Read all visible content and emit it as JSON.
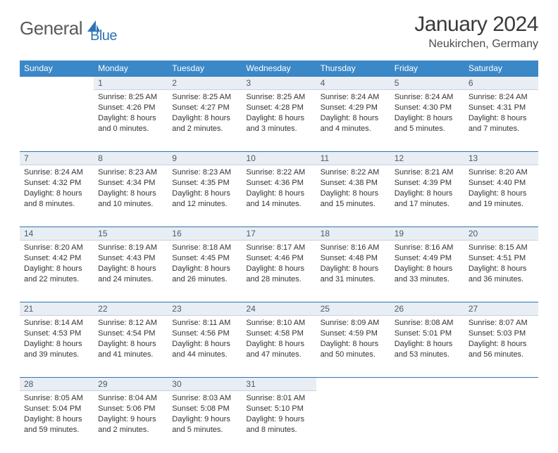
{
  "logo": {
    "text1": "General",
    "text2": "Blue"
  },
  "title": "January 2024",
  "location": "Neukirchen, Germany",
  "colors": {
    "headerBg": "#3b88c8",
    "headerText": "#ffffff",
    "dayBg": "#e8eef3",
    "dayBorderTop": "#2f73b5",
    "logoAccent": "#2f73b5",
    "text": "#333333"
  },
  "fonts": {
    "title_size": 30,
    "location_size": 16,
    "header_size": 12,
    "daynum_size": 12,
    "body_size": 11
  },
  "dayHeaders": [
    "Sunday",
    "Monday",
    "Tuesday",
    "Wednesday",
    "Thursday",
    "Friday",
    "Saturday"
  ],
  "weeks": [
    {
      "nums": [
        "",
        "1",
        "2",
        "3",
        "4",
        "5",
        "6"
      ],
      "cells": [
        null,
        {
          "sr": "Sunrise: 8:25 AM",
          "ss": "Sunset: 4:26 PM",
          "dl1": "Daylight: 8 hours",
          "dl2": "and 0 minutes."
        },
        {
          "sr": "Sunrise: 8:25 AM",
          "ss": "Sunset: 4:27 PM",
          "dl1": "Daylight: 8 hours",
          "dl2": "and 2 minutes."
        },
        {
          "sr": "Sunrise: 8:25 AM",
          "ss": "Sunset: 4:28 PM",
          "dl1": "Daylight: 8 hours",
          "dl2": "and 3 minutes."
        },
        {
          "sr": "Sunrise: 8:24 AM",
          "ss": "Sunset: 4:29 PM",
          "dl1": "Daylight: 8 hours",
          "dl2": "and 4 minutes."
        },
        {
          "sr": "Sunrise: 8:24 AM",
          "ss": "Sunset: 4:30 PM",
          "dl1": "Daylight: 8 hours",
          "dl2": "and 5 minutes."
        },
        {
          "sr": "Sunrise: 8:24 AM",
          "ss": "Sunset: 4:31 PM",
          "dl1": "Daylight: 8 hours",
          "dl2": "and 7 minutes."
        }
      ]
    },
    {
      "nums": [
        "7",
        "8",
        "9",
        "10",
        "11",
        "12",
        "13"
      ],
      "cells": [
        {
          "sr": "Sunrise: 8:24 AM",
          "ss": "Sunset: 4:32 PM",
          "dl1": "Daylight: 8 hours",
          "dl2": "and 8 minutes."
        },
        {
          "sr": "Sunrise: 8:23 AM",
          "ss": "Sunset: 4:34 PM",
          "dl1": "Daylight: 8 hours",
          "dl2": "and 10 minutes."
        },
        {
          "sr": "Sunrise: 8:23 AM",
          "ss": "Sunset: 4:35 PM",
          "dl1": "Daylight: 8 hours",
          "dl2": "and 12 minutes."
        },
        {
          "sr": "Sunrise: 8:22 AM",
          "ss": "Sunset: 4:36 PM",
          "dl1": "Daylight: 8 hours",
          "dl2": "and 14 minutes."
        },
        {
          "sr": "Sunrise: 8:22 AM",
          "ss": "Sunset: 4:38 PM",
          "dl1": "Daylight: 8 hours",
          "dl2": "and 15 minutes."
        },
        {
          "sr": "Sunrise: 8:21 AM",
          "ss": "Sunset: 4:39 PM",
          "dl1": "Daylight: 8 hours",
          "dl2": "and 17 minutes."
        },
        {
          "sr": "Sunrise: 8:20 AM",
          "ss": "Sunset: 4:40 PM",
          "dl1": "Daylight: 8 hours",
          "dl2": "and 19 minutes."
        }
      ]
    },
    {
      "nums": [
        "14",
        "15",
        "16",
        "17",
        "18",
        "19",
        "20"
      ],
      "cells": [
        {
          "sr": "Sunrise: 8:20 AM",
          "ss": "Sunset: 4:42 PM",
          "dl1": "Daylight: 8 hours",
          "dl2": "and 22 minutes."
        },
        {
          "sr": "Sunrise: 8:19 AM",
          "ss": "Sunset: 4:43 PM",
          "dl1": "Daylight: 8 hours",
          "dl2": "and 24 minutes."
        },
        {
          "sr": "Sunrise: 8:18 AM",
          "ss": "Sunset: 4:45 PM",
          "dl1": "Daylight: 8 hours",
          "dl2": "and 26 minutes."
        },
        {
          "sr": "Sunrise: 8:17 AM",
          "ss": "Sunset: 4:46 PM",
          "dl1": "Daylight: 8 hours",
          "dl2": "and 28 minutes."
        },
        {
          "sr": "Sunrise: 8:16 AM",
          "ss": "Sunset: 4:48 PM",
          "dl1": "Daylight: 8 hours",
          "dl2": "and 31 minutes."
        },
        {
          "sr": "Sunrise: 8:16 AM",
          "ss": "Sunset: 4:49 PM",
          "dl1": "Daylight: 8 hours",
          "dl2": "and 33 minutes."
        },
        {
          "sr": "Sunrise: 8:15 AM",
          "ss": "Sunset: 4:51 PM",
          "dl1": "Daylight: 8 hours",
          "dl2": "and 36 minutes."
        }
      ]
    },
    {
      "nums": [
        "21",
        "22",
        "23",
        "24",
        "25",
        "26",
        "27"
      ],
      "cells": [
        {
          "sr": "Sunrise: 8:14 AM",
          "ss": "Sunset: 4:53 PM",
          "dl1": "Daylight: 8 hours",
          "dl2": "and 39 minutes."
        },
        {
          "sr": "Sunrise: 8:12 AM",
          "ss": "Sunset: 4:54 PM",
          "dl1": "Daylight: 8 hours",
          "dl2": "and 41 minutes."
        },
        {
          "sr": "Sunrise: 8:11 AM",
          "ss": "Sunset: 4:56 PM",
          "dl1": "Daylight: 8 hours",
          "dl2": "and 44 minutes."
        },
        {
          "sr": "Sunrise: 8:10 AM",
          "ss": "Sunset: 4:58 PM",
          "dl1": "Daylight: 8 hours",
          "dl2": "and 47 minutes."
        },
        {
          "sr": "Sunrise: 8:09 AM",
          "ss": "Sunset: 4:59 PM",
          "dl1": "Daylight: 8 hours",
          "dl2": "and 50 minutes."
        },
        {
          "sr": "Sunrise: 8:08 AM",
          "ss": "Sunset: 5:01 PM",
          "dl1": "Daylight: 8 hours",
          "dl2": "and 53 minutes."
        },
        {
          "sr": "Sunrise: 8:07 AM",
          "ss": "Sunset: 5:03 PM",
          "dl1": "Daylight: 8 hours",
          "dl2": "and 56 minutes."
        }
      ]
    },
    {
      "nums": [
        "28",
        "29",
        "30",
        "31",
        "",
        "",
        ""
      ],
      "cells": [
        {
          "sr": "Sunrise: 8:05 AM",
          "ss": "Sunset: 5:04 PM",
          "dl1": "Daylight: 8 hours",
          "dl2": "and 59 minutes."
        },
        {
          "sr": "Sunrise: 8:04 AM",
          "ss": "Sunset: 5:06 PM",
          "dl1": "Daylight: 9 hours",
          "dl2": "and 2 minutes."
        },
        {
          "sr": "Sunrise: 8:03 AM",
          "ss": "Sunset: 5:08 PM",
          "dl1": "Daylight: 9 hours",
          "dl2": "and 5 minutes."
        },
        {
          "sr": "Sunrise: 8:01 AM",
          "ss": "Sunset: 5:10 PM",
          "dl1": "Daylight: 9 hours",
          "dl2": "and 8 minutes."
        },
        null,
        null,
        null
      ]
    }
  ]
}
